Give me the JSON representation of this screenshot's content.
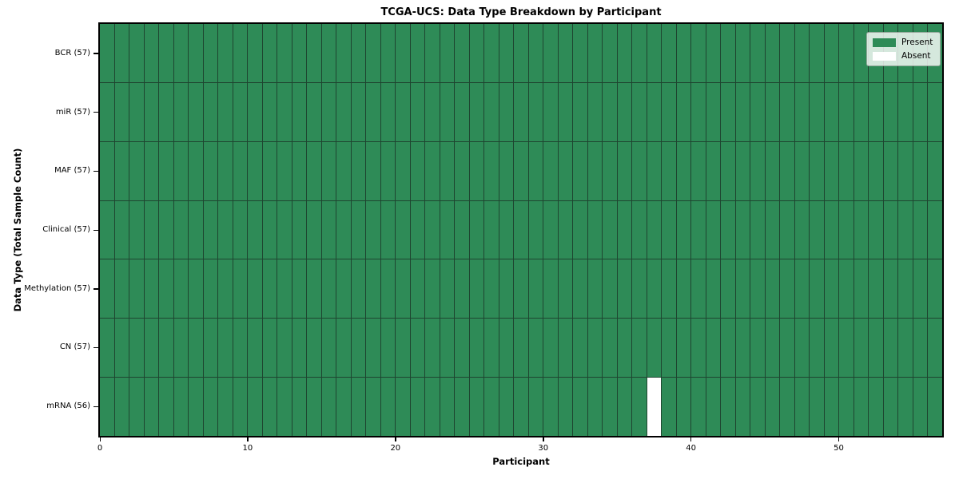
{
  "chart_data": {
    "type": "heatmap",
    "title": "TCGA-UCS: Data Type Breakdown by Participant",
    "xlabel": "Participant",
    "ylabel": "Data Type (Total Sample Count)",
    "n_participants": 57,
    "x_range": [
      0,
      57
    ],
    "x_ticks": [
      0,
      10,
      20,
      30,
      40,
      50
    ],
    "grid": "cell-edges",
    "rows": [
      {
        "label": "BCR (57)",
        "data_type": "BCR",
        "sample_count": 57,
        "absent_participants": []
      },
      {
        "label": "miR (57)",
        "data_type": "miR",
        "sample_count": 57,
        "absent_participants": []
      },
      {
        "label": "MAF (57)",
        "data_type": "MAF",
        "sample_count": 57,
        "absent_participants": []
      },
      {
        "label": "Clinical (57)",
        "data_type": "Clinical",
        "sample_count": 57,
        "absent_participants": []
      },
      {
        "label": "Methylation (57)",
        "data_type": "Methylation",
        "sample_count": 57,
        "absent_participants": []
      },
      {
        "label": "CN (57)",
        "data_type": "CN",
        "sample_count": 57,
        "absent_participants": []
      },
      {
        "label": "mRNA (56)",
        "data_type": "mRNA",
        "sample_count": 56,
        "absent_participants": [
          37
        ]
      }
    ],
    "legend": {
      "position": "upper-right",
      "items": [
        {
          "label": "Present",
          "color": "#2e8b57"
        },
        {
          "label": "Absent",
          "color": "#ffffff"
        }
      ]
    },
    "colors": {
      "present": "#2e8b57",
      "absent": "#ffffff",
      "cell_edge": "#1e4530",
      "axis": "#000000",
      "background": "#ffffff"
    }
  }
}
